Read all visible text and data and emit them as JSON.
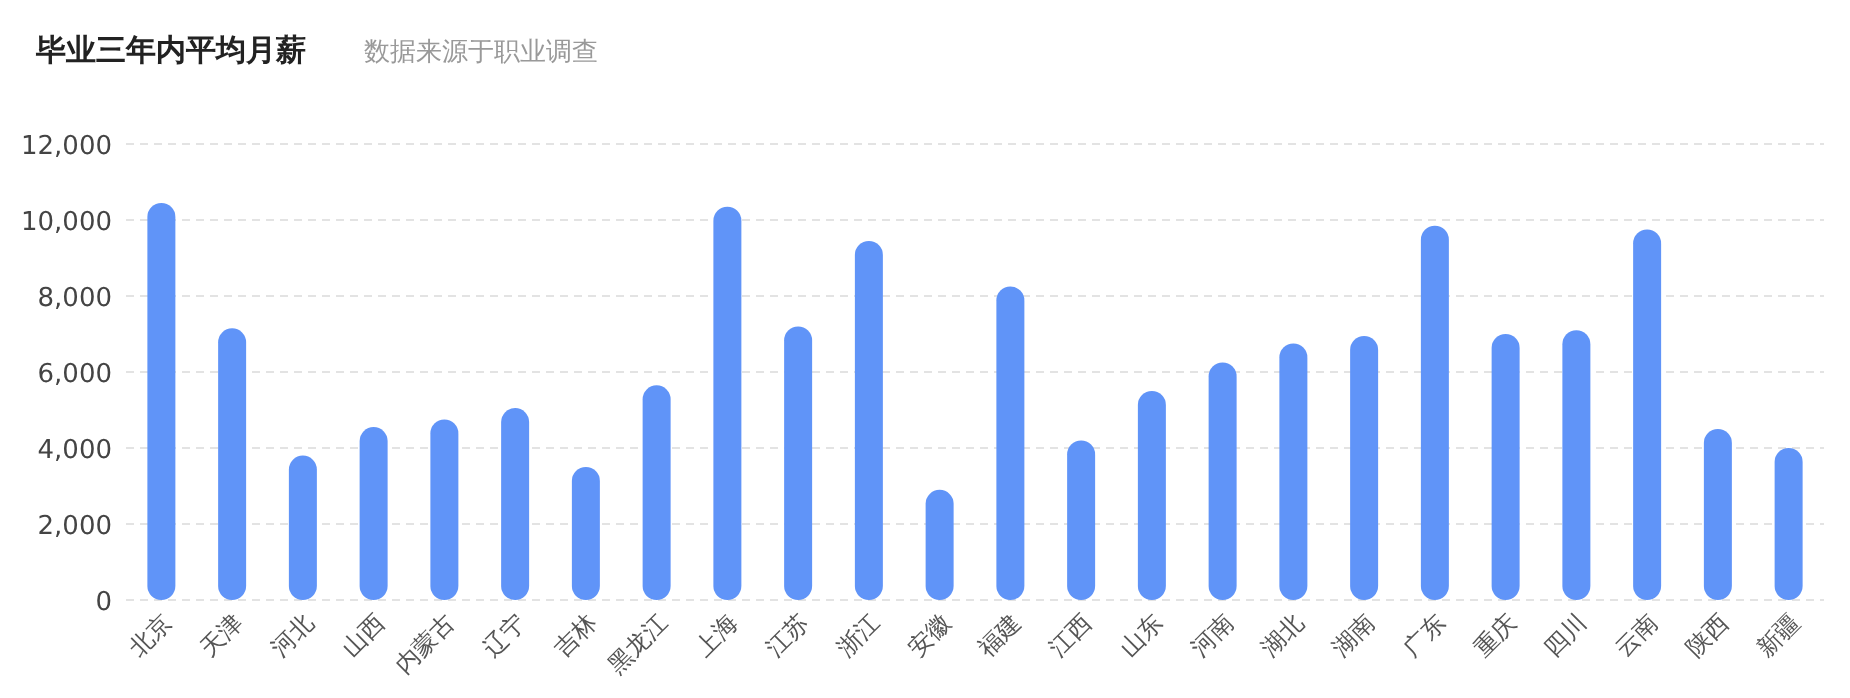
{
  "chart_data": {
    "type": "bar",
    "title": "毕业三年内平均月薪",
    "subtitle": "数据来源于职业调查",
    "categories": [
      "北京",
      "天津",
      "河北",
      "山西",
      "内蒙古",
      "辽宁",
      "吉林",
      "黑龙江",
      "上海",
      "江苏",
      "浙江",
      "安徽",
      "福建",
      "江西",
      "山东",
      "河南",
      "湖北",
      "湖南",
      "广东",
      "重庆",
      "四川",
      "云南",
      "陕西",
      "新疆"
    ],
    "values": [
      10450,
      7150,
      3800,
      4550,
      4750,
      5050,
      3500,
      5650,
      10350,
      7200,
      9450,
      2900,
      8250,
      4200,
      5500,
      6250,
      6750,
      6950,
      9850,
      7000,
      7100,
      9750,
      4500,
      4000
    ],
    "color": "#6094f8",
    "ylim": [
      0,
      12000
    ],
    "yticks": [
      {
        "value": 0,
        "label": "0"
      },
      {
        "value": 2000,
        "label": "2,000"
      },
      {
        "value": 4000,
        "label": "4,000"
      },
      {
        "value": 6000,
        "label": "6,000"
      },
      {
        "value": 8000,
        "label": "8,000"
      },
      {
        "value": 10000,
        "label": "10,000"
      },
      {
        "value": 12000,
        "label": "12,000"
      }
    ],
    "grid": "y"
  }
}
